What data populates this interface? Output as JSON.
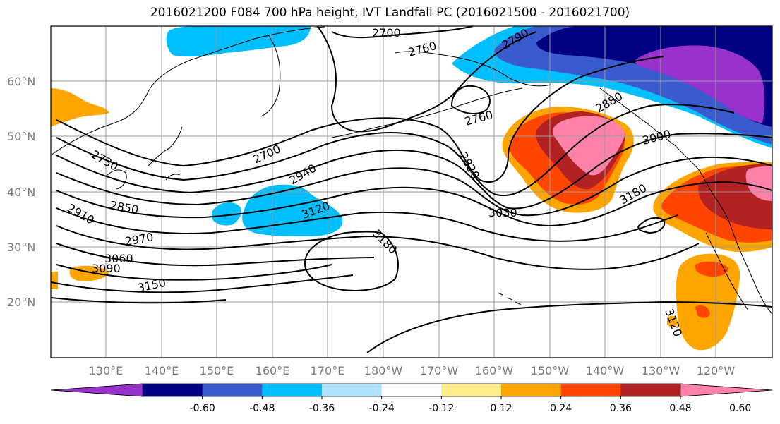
{
  "title": "2016021200 F084 700 hPa height, IVT Landfall PC (2016021500 - 2016021700)",
  "lat_labels": [
    "60°N",
    "50°N",
    "40°N",
    "30°N",
    "20°N"
  ],
  "lon_labels": [
    "130°E",
    "140°E",
    "150°E",
    "160°E",
    "170°E",
    "180°W",
    "170°W",
    "160°W",
    "150°W",
    "140°W",
    "130°W",
    "120°W"
  ],
  "contour_labels": [
    "2700",
    "2760",
    "2790",
    "2760",
    "2880",
    "3000",
    "2820",
    "2700",
    "2730",
    "2940",
    "2850",
    "2910",
    "3120",
    "3030",
    "3180",
    "2970",
    "3180",
    "3060",
    "3090",
    "3150",
    "3120"
  ],
  "colorbar": {
    "colors": [
      "#9932cc",
      "#000080",
      "#3a5bcd",
      "#00bfff",
      "#b0e2ff",
      "#ffffff",
      "#ffec8b",
      "#ffa500",
      "#ff4500",
      "#b22222",
      "#ff82ab"
    ],
    "tick_labels": [
      "-0.60",
      "-0.48",
      "-0.36",
      "-0.24",
      "-0.12",
      "0.12",
      "0.24",
      "0.36",
      "0.48",
      "0.60"
    ]
  }
}
